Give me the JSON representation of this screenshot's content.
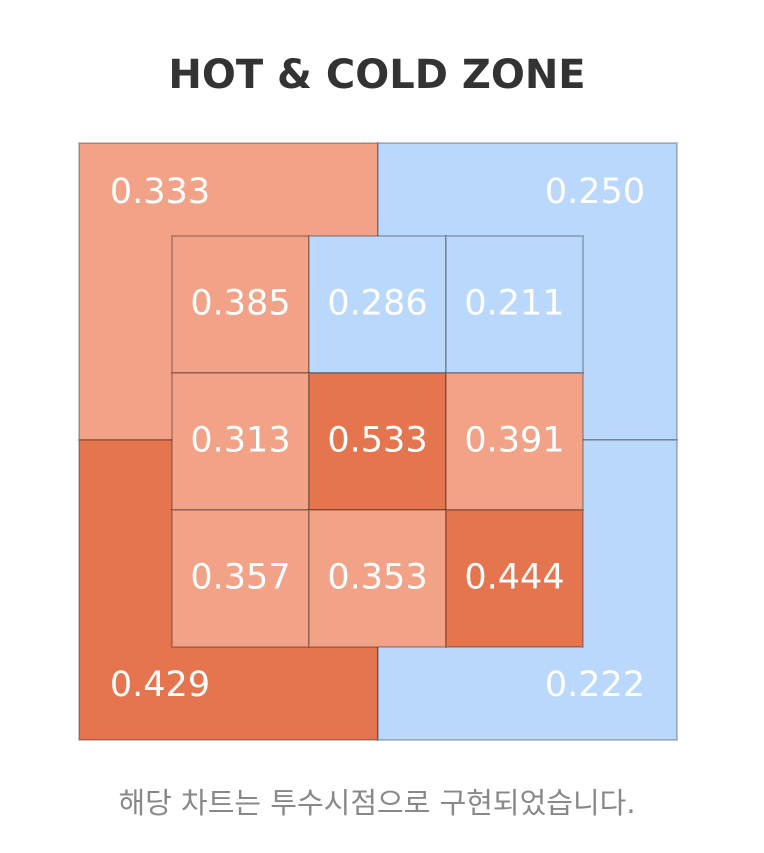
{
  "title": "HOT & COLD ZONE",
  "zones": [
    {
      "label": "0.333",
      "color": "#f1a287"
    },
    {
      "label": "0.250",
      "color": "#b9d8fb"
    },
    {
      "label": "0.429",
      "color": "#e4754f"
    },
    {
      "label": "0.222",
      "color": "#b9d8fb"
    }
  ],
  "cells": [
    [
      {
        "label": "0.385",
        "color": "#f1a287"
      },
      {
        "label": "0.286",
        "color": "#b9d8fb"
      },
      {
        "label": "0.211",
        "color": "#b9d8fb"
      }
    ],
    [
      {
        "label": "0.313",
        "color": "#f1a287"
      },
      {
        "label": "0.533",
        "color": "#e4754f"
      },
      {
        "label": "0.391",
        "color": "#f1a287"
      }
    ],
    [
      {
        "label": "0.357",
        "color": "#f1a287"
      },
      {
        "label": "0.353",
        "color": "#f1a287"
      },
      {
        "label": "0.444",
        "color": "#e4754f"
      }
    ]
  ],
  "footnote": "해당 차트는 투수시점으로 구현되었습니다."
}
